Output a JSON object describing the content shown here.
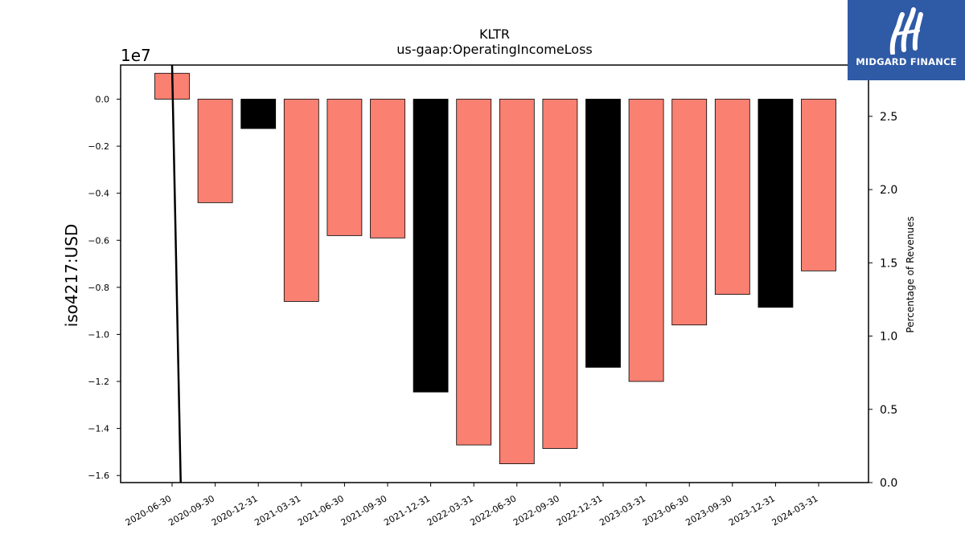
{
  "chart_data": {
    "type": "bar",
    "title": "KLTR",
    "subtitle": "us-gaap:OperatingIncomeLoss",
    "ylabel": "iso4217:USD",
    "y2label": "Percentage of Revenues",
    "offset_text": "1e7",
    "categories": [
      "2020-06-30",
      "2020-09-30",
      "2020-12-31",
      "2021-03-31",
      "2021-06-30",
      "2021-09-30",
      "2021-12-31",
      "2022-03-31",
      "2022-06-30",
      "2022-09-30",
      "2022-12-31",
      "2023-03-31",
      "2023-06-30",
      "2023-09-30",
      "2023-12-31",
      "2024-03-31"
    ],
    "values": [
      1100000,
      -4400000,
      -1250000,
      -8600000,
      -5800000,
      -5900000,
      -12450000,
      -14700000,
      -15500000,
      -14850000,
      -11400000,
      -12000000,
      -9600000,
      -8300000,
      -8850000,
      -7300000
    ],
    "bar_colors": [
      "#fa8072",
      "#fa8072",
      "#000000",
      "#fa8072",
      "#fa8072",
      "#fa8072",
      "#000000",
      "#fa8072",
      "#fa8072",
      "#fa8072",
      "#000000",
      "#fa8072",
      "#fa8072",
      "#fa8072",
      "#000000",
      "#fa8072"
    ],
    "ylim": [
      -16300000,
      1450000
    ],
    "yticks": [
      0,
      -2000000,
      -4000000,
      -6000000,
      -8000000,
      -10000000,
      -12000000,
      -14000000,
      -16000000
    ],
    "ytick_labels": [
      "0.0",
      "−0.2",
      "−0.4",
      "−0.6",
      "−0.8",
      "−1.0",
      "−1.2",
      "−1.4",
      "−1.6"
    ],
    "y2lim": [
      0,
      2.85
    ],
    "y2ticks": [
      0,
      0.5,
      1.0,
      1.5,
      2.0,
      2.5
    ],
    "y2tick_labels": [
      "0.0",
      "0.5",
      "1.0",
      "1.5",
      "2.0",
      "2.5"
    ],
    "line_series": {
      "x": [
        0,
        0.2
      ],
      "y2": [
        2.85,
        0
      ],
      "color": "#000000"
    },
    "grid": false
  },
  "logo": {
    "text": "MIDGARD FINANCE",
    "bg_color": "#2f5aa6"
  }
}
